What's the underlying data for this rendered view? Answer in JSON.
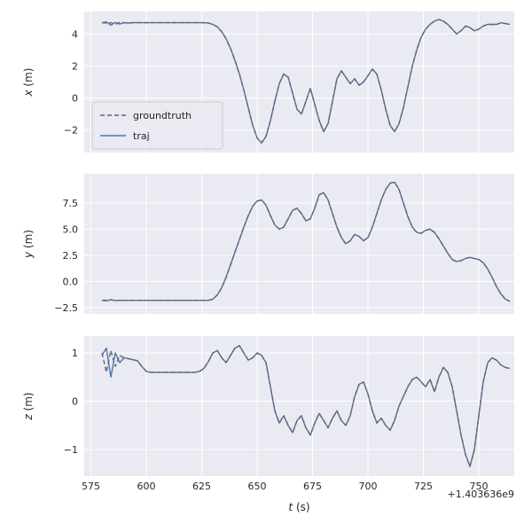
{
  "figure": {
    "theme": {
      "figure_bg": "#ffffff",
      "axes_bg": "#eaeaf2",
      "grid": "#ffffff",
      "text": "#262626",
      "legend_border": "#cccccc",
      "traj_color": "#4c72b0",
      "groundtruth_color": "#666666"
    },
    "xlabel_var": "t",
    "xlabel_unit": " (s)",
    "x_offset_text": "+1.403636e9"
  },
  "chart_data": {
    "type": "line",
    "title": "",
    "xlabel": "t (s)",
    "x_offset": "+1.403636e9",
    "grid": true,
    "legend": {
      "entries": [
        "groundtruth",
        "traj"
      ],
      "location": "lower left of first subplot"
    },
    "xlim": [
      572,
      766
    ],
    "xticks": {
      "values": [
        575,
        600,
        625,
        650,
        675,
        700,
        725,
        750
      ],
      "labels": [
        "575",
        "600",
        "625",
        "650",
        "675",
        "700",
        "725",
        "750"
      ]
    },
    "x": [
      580,
      582,
      584,
      586,
      588,
      590,
      592,
      594,
      596,
      598,
      600,
      602,
      604,
      606,
      608,
      610,
      612,
      614,
      616,
      618,
      620,
      622,
      624,
      626,
      628,
      630,
      632,
      634,
      636,
      638,
      640,
      642,
      644,
      646,
      648,
      650,
      652,
      654,
      656,
      658,
      660,
      662,
      664,
      666,
      668,
      670,
      672,
      674,
      676,
      678,
      680,
      682,
      684,
      686,
      688,
      690,
      692,
      694,
      696,
      698,
      700,
      702,
      704,
      706,
      708,
      710,
      712,
      714,
      716,
      718,
      720,
      722,
      724,
      726,
      728,
      730,
      732,
      734,
      736,
      738,
      740,
      742,
      744,
      746,
      748,
      750,
      752,
      754,
      756,
      758,
      760,
      762,
      764
    ],
    "subplots": [
      {
        "id": "x",
        "ylabel_var": "x",
        "ylabel_unit": " (m)",
        "ylim": [
          -3.4,
          5.4
        ],
        "yticks": {
          "values": [
            -2,
            0,
            2,
            4
          ],
          "labels": [
            "−2",
            "0",
            "2",
            "4"
          ]
        },
        "series": [
          {
            "name": "groundtruth",
            "label": "groundtruth",
            "color": "#666666",
            "style": "dashed",
            "dash": "5 3",
            "values": [
              4.7,
              4.68,
              4.7,
              4.6,
              4.72,
              4.7,
              4.68,
              4.7,
              4.7,
              4.7,
              4.7,
              4.7,
              4.7,
              4.7,
              4.7,
              4.7,
              4.7,
              4.7,
              4.7,
              4.7,
              4.7,
              4.7,
              4.7,
              4.7,
              4.68,
              4.6,
              4.45,
              4.15,
              3.7,
              3.1,
              2.35,
              1.5,
              0.5,
              -0.6,
              -1.7,
              -2.5,
              -2.8,
              -2.4,
              -1.4,
              -0.2,
              0.9,
              1.5,
              1.3,
              0.3,
              -0.7,
              -1.0,
              -0.2,
              0.6,
              -0.4,
              -1.4,
              -2.1,
              -1.6,
              -0.2,
              1.2,
              1.7,
              1.3,
              0.9,
              1.2,
              0.8,
              1.0,
              1.4,
              1.8,
              1.5,
              0.5,
              -0.7,
              -1.7,
              -2.1,
              -1.6,
              -0.6,
              0.7,
              2.0,
              3.0,
              3.8,
              4.3,
              4.6,
              4.8,
              4.9,
              4.8,
              4.6,
              4.3,
              4.0,
              4.2,
              4.5,
              4.4,
              4.2,
              4.3,
              4.5,
              4.6,
              4.6,
              4.6,
              4.7,
              4.65,
              4.6
            ]
          },
          {
            "name": "traj",
            "label": "traj",
            "color": "#4c72b0",
            "style": "solid",
            "values": [
              4.7,
              4.75,
              4.55,
              4.72,
              4.62,
              4.7,
              4.68,
              4.7,
              4.7,
              4.7,
              4.7,
              4.7,
              4.7,
              4.7,
              4.7,
              4.7,
              4.7,
              4.7,
              4.7,
              4.7,
              4.7,
              4.7,
              4.7,
              4.7,
              4.68,
              4.6,
              4.45,
              4.15,
              3.7,
              3.1,
              2.35,
              1.5,
              0.5,
              -0.6,
              -1.7,
              -2.5,
              -2.8,
              -2.4,
              -1.4,
              -0.2,
              0.9,
              1.5,
              1.3,
              0.3,
              -0.7,
              -1.0,
              -0.2,
              0.6,
              -0.4,
              -1.4,
              -2.1,
              -1.6,
              -0.2,
              1.2,
              1.7,
              1.3,
              0.9,
              1.2,
              0.8,
              1.0,
              1.4,
              1.8,
              1.5,
              0.5,
              -0.7,
              -1.7,
              -2.1,
              -1.6,
              -0.6,
              0.7,
              2.0,
              3.0,
              3.8,
              4.3,
              4.6,
              4.8,
              4.9,
              4.8,
              4.6,
              4.3,
              4.0,
              4.2,
              4.5,
              4.4,
              4.2,
              4.3,
              4.5,
              4.6,
              4.6,
              4.6,
              4.7,
              4.65,
              4.6
            ]
          }
        ]
      },
      {
        "id": "y",
        "ylabel_var": "y",
        "ylabel_unit": " (m)",
        "ylim": [
          -3.1,
          10.3
        ],
        "yticks": {
          "values": [
            -2.5,
            0.0,
            2.5,
            5.0,
            7.5
          ],
          "labels": [
            "−2.5",
            "0.0",
            "2.5",
            "5.0",
            "7.5"
          ]
        },
        "series": [
          {
            "name": "groundtruth",
            "label": "groundtruth",
            "color": "#666666",
            "style": "dashed",
            "dash": "5 3",
            "values": [
              -1.8,
              -1.78,
              -1.75,
              -1.83,
              -1.8,
              -1.8,
              -1.8,
              -1.8,
              -1.8,
              -1.8,
              -1.8,
              -1.8,
              -1.8,
              -1.8,
              -1.8,
              -1.8,
              -1.8,
              -1.8,
              -1.8,
              -1.8,
              -1.8,
              -1.8,
              -1.8,
              -1.8,
              -1.8,
              -1.7,
              -1.3,
              -0.6,
              0.4,
              1.6,
              2.8,
              4.0,
              5.2,
              6.3,
              7.2,
              7.7,
              7.8,
              7.3,
              6.3,
              5.4,
              5.0,
              5.2,
              6.0,
              6.8,
              7.0,
              6.5,
              5.8,
              6.0,
              7.0,
              8.3,
              8.5,
              7.8,
              6.5,
              5.2,
              4.2,
              3.6,
              3.9,
              4.5,
              4.3,
              3.9,
              4.2,
              5.2,
              6.5,
              7.8,
              8.8,
              9.4,
              9.5,
              8.8,
              7.5,
              6.2,
              5.2,
              4.7,
              4.6,
              4.9,
              5.0,
              4.7,
              4.1,
              3.4,
              2.7,
              2.1,
              1.9,
              2.0,
              2.2,
              2.3,
              2.2,
              2.1,
              1.8,
              1.2,
              0.4,
              -0.5,
              -1.2,
              -1.7,
              -1.9
            ]
          },
          {
            "name": "traj",
            "label": "traj",
            "color": "#4c72b0",
            "style": "solid",
            "values": [
              -1.8,
              -1.85,
              -1.75,
              -1.82,
              -1.8,
              -1.8,
              -1.8,
              -1.8,
              -1.8,
              -1.8,
              -1.8,
              -1.8,
              -1.8,
              -1.8,
              -1.8,
              -1.8,
              -1.8,
              -1.8,
              -1.8,
              -1.8,
              -1.8,
              -1.8,
              -1.8,
              -1.8,
              -1.8,
              -1.7,
              -1.3,
              -0.6,
              0.4,
              1.6,
              2.8,
              4.0,
              5.2,
              6.3,
              7.2,
              7.7,
              7.8,
              7.3,
              6.3,
              5.4,
              5.0,
              5.2,
              6.0,
              6.8,
              7.0,
              6.5,
              5.8,
              6.0,
              7.0,
              8.3,
              8.5,
              7.8,
              6.5,
              5.2,
              4.2,
              3.6,
              3.9,
              4.5,
              4.3,
              3.9,
              4.2,
              5.2,
              6.5,
              7.8,
              8.8,
              9.4,
              9.5,
              8.8,
              7.5,
              6.2,
              5.2,
              4.7,
              4.6,
              4.9,
              5.0,
              4.7,
              4.1,
              3.4,
              2.7,
              2.1,
              1.9,
              2.0,
              2.2,
              2.3,
              2.2,
              2.1,
              1.8,
              1.2,
              0.4,
              -0.5,
              -1.2,
              -1.7,
              -1.9
            ]
          }
        ]
      },
      {
        "id": "z",
        "ylabel_var": "z",
        "ylabel_unit": " (m)",
        "ylim": [
          -1.55,
          1.35
        ],
        "yticks": {
          "values": [
            -1,
            0,
            1
          ],
          "labels": [
            "−1",
            "0",
            "1"
          ]
        },
        "series": [
          {
            "name": "groundtruth",
            "label": "groundtruth",
            "color": "#666666",
            "style": "dashed",
            "dash": "5 3",
            "values": [
              1.0,
              0.6,
              1.05,
              0.72,
              0.95,
              0.9,
              0.88,
              0.86,
              0.84,
              0.72,
              0.62,
              0.6,
              0.6,
              0.6,
              0.6,
              0.6,
              0.6,
              0.6,
              0.6,
              0.6,
              0.6,
              0.6,
              0.62,
              0.68,
              0.82,
              1.0,
              1.05,
              0.9,
              0.8,
              0.95,
              1.1,
              1.15,
              1.0,
              0.85,
              0.9,
              1.0,
              0.95,
              0.8,
              0.3,
              -0.2,
              -0.45,
              -0.3,
              -0.5,
              -0.65,
              -0.4,
              -0.3,
              -0.55,
              -0.7,
              -0.45,
              -0.25,
              -0.4,
              -0.55,
              -0.35,
              -0.2,
              -0.4,
              -0.5,
              -0.3,
              0.1,
              0.35,
              0.4,
              0.15,
              -0.2,
              -0.45,
              -0.35,
              -0.5,
              -0.6,
              -0.4,
              -0.1,
              0.1,
              0.3,
              0.45,
              0.5,
              0.4,
              0.3,
              0.45,
              0.2,
              0.5,
              0.7,
              0.6,
              0.3,
              -0.2,
              -0.7,
              -1.1,
              -1.35,
              -1.0,
              -0.3,
              0.4,
              0.8,
              0.9,
              0.85,
              0.75,
              0.7,
              0.68
            ]
          },
          {
            "name": "traj",
            "label": "traj",
            "color": "#4c72b0",
            "style": "solid",
            "values": [
              0.95,
              1.1,
              0.5,
              1.0,
              0.8,
              0.9,
              0.88,
              0.86,
              0.84,
              0.72,
              0.62,
              0.6,
              0.6,
              0.6,
              0.6,
              0.6,
              0.6,
              0.6,
              0.6,
              0.6,
              0.6,
              0.6,
              0.62,
              0.68,
              0.82,
              1.0,
              1.05,
              0.9,
              0.8,
              0.95,
              1.1,
              1.15,
              1.0,
              0.85,
              0.9,
              1.0,
              0.95,
              0.8,
              0.3,
              -0.2,
              -0.45,
              -0.3,
              -0.5,
              -0.65,
              -0.4,
              -0.3,
              -0.55,
              -0.7,
              -0.45,
              -0.25,
              -0.4,
              -0.55,
              -0.35,
              -0.2,
              -0.4,
              -0.5,
              -0.3,
              0.1,
              0.35,
              0.4,
              0.15,
              -0.2,
              -0.45,
              -0.35,
              -0.5,
              -0.6,
              -0.4,
              -0.1,
              0.1,
              0.3,
              0.45,
              0.5,
              0.4,
              0.3,
              0.45,
              0.2,
              0.5,
              0.7,
              0.6,
              0.3,
              -0.2,
              -0.7,
              -1.1,
              -1.35,
              -1.0,
              -0.3,
              0.4,
              0.8,
              0.9,
              0.85,
              0.75,
              0.7,
              0.68
            ]
          }
        ]
      }
    ]
  }
}
